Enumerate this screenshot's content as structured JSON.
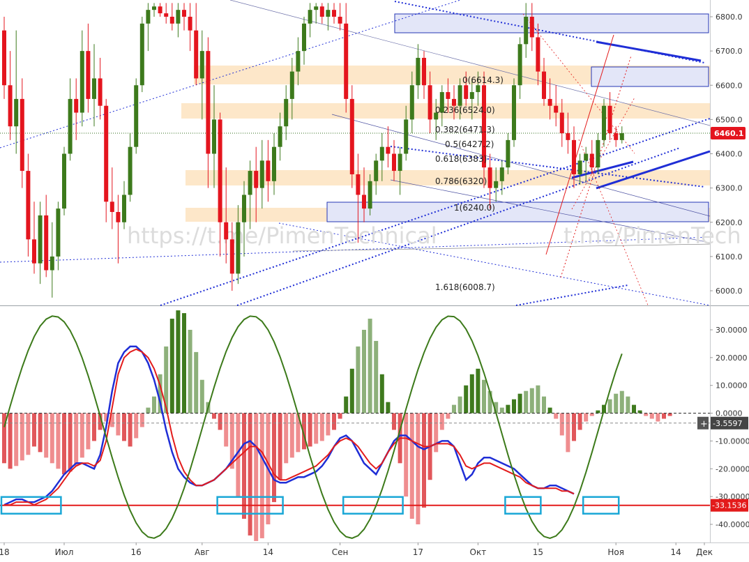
{
  "watermark": "https://t.me/PimenTechnical",
  "watermark2": "t.me/PimenTech",
  "colors": {
    "up": "#3d7a1c",
    "down": "#e4151e",
    "hist_pos": "#8db07a",
    "hist_neg": "#ef8d8f",
    "hist_pos_strong": "#3f7a1e",
    "hist_neg_strong": "#e1575b",
    "blue": "#1f2ed6",
    "red": "#e31b1b",
    "green": "#3c7a1a",
    "orange_zone": "#fde3c0",
    "blue_zone": "#e3e6f8",
    "highlight": "#1aa7d6"
  },
  "price_axis": {
    "ticks": [
      "6800.0",
      "6700.0",
      "6600.0",
      "6500.0",
      "6400.0",
      "6300.0",
      "6200.0",
      "6100.0",
      "6000.0"
    ],
    "last_price": "6460.1",
    "ylim": [
      5960,
      6840
    ]
  },
  "fib_levels": [
    {
      "label": "0.5(6427.2)",
      "value": 6427.2
    },
    {
      "label": "0.618(6383)",
      "value": 6383
    },
    {
      "label": "0.786(6320)",
      "value": 6320
    },
    {
      "label": "1(6240.0)",
      "value": 6240
    },
    {
      "label": "1.618(6008.7)",
      "value": 6008.7
    },
    {
      "label": "0.236(6524.0)",
      "value": 6524
    },
    {
      "label": "0.382(6471.3)",
      "value": 6471.3
    },
    {
      "label": "0(6614.3)",
      "value": 6614.3
    }
  ],
  "osc_axis": {
    "ticks": [
      "30.0000",
      "20.0000",
      "10.0000",
      "0.0000",
      "-10.0000",
      "-20.0000",
      "-30.0000",
      "-40.0000"
    ],
    "current_value": "-3.5597",
    "level_value": "-33.1536",
    "ylim": [
      -47,
      38
    ]
  },
  "time_axis": {
    "labels": [
      {
        "text": "18",
        "i": 0
      },
      {
        "text": "Июл",
        "i": 10
      },
      {
        "text": "16",
        "i": 22
      },
      {
        "text": "Авг",
        "i": 33
      },
      {
        "text": "14",
        "i": 44
      },
      {
        "text": "Сен",
        "i": 56
      },
      {
        "text": "17",
        "i": 69
      },
      {
        "text": "Окт",
        "i": 79
      },
      {
        "text": "15",
        "i": 89
      },
      {
        "text": "Ноя",
        "i": 102
      },
      {
        "text": "14",
        "i": 112
      },
      {
        "text": "Дек",
        "i": 124
      }
    ]
  },
  "chart_data": {
    "type": "candlestick",
    "candles": [
      [
        6760,
        6800,
        6560,
        6600
      ],
      [
        6600,
        6700,
        6440,
        6480
      ],
      [
        6480,
        6760,
        6400,
        6560
      ],
      [
        6560,
        6620,
        6300,
        6350
      ],
      [
        6350,
        6400,
        6100,
        6150
      ],
      [
        6150,
        6260,
        6050,
        6080
      ],
      [
        6080,
        6260,
        6020,
        6220
      ],
      [
        6220,
        6280,
        6040,
        6060
      ],
      [
        6060,
        6200,
        5980,
        6100
      ],
      [
        6100,
        6260,
        6060,
        6240
      ],
      [
        6240,
        6420,
        6220,
        6400
      ],
      [
        6400,
        6620,
        6380,
        6560
      ],
      [
        6560,
        6620,
        6440,
        6520
      ],
      [
        6520,
        6760,
        6480,
        6700
      ],
      [
        6700,
        6780,
        6520,
        6560
      ],
      [
        6560,
        6720,
        6480,
        6620
      ],
      [
        6620,
        6680,
        6500,
        6540
      ],
      [
        6540,
        6560,
        6200,
        6260
      ],
      [
        6260,
        6360,
        6180,
        6230
      ],
      [
        6230,
        6280,
        6080,
        6200
      ],
      [
        6200,
        6320,
        6180,
        6280
      ],
      [
        6280,
        6460,
        6260,
        6420
      ],
      [
        6420,
        6620,
        6400,
        6600
      ],
      [
        6600,
        6800,
        6580,
        6780
      ],
      [
        6780,
        6840,
        6700,
        6820
      ],
      [
        6820,
        6840,
        6800,
        6830
      ],
      [
        6830,
        6840,
        6800,
        6810
      ],
      [
        6810,
        6840,
        6780,
        6800
      ],
      [
        6800,
        6840,
        6760,
        6780
      ],
      [
        6780,
        6840,
        6740,
        6820
      ],
      [
        6820,
        6840,
        6760,
        6800
      ],
      [
        6800,
        6840,
        6700,
        6760
      ],
      [
        6760,
        6840,
        6600,
        6620
      ],
      [
        6620,
        6760,
        6500,
        6700
      ],
      [
        6700,
        6740,
        6300,
        6400
      ],
      [
        6400,
        6600,
        6300,
        6500
      ],
      [
        6500,
        6520,
        6100,
        6200
      ],
      [
        6200,
        6360,
        6080,
        6150
      ],
      [
        6150,
        6200,
        6000,
        6050
      ],
      [
        6050,
        6250,
        6020,
        6200
      ],
      [
        6200,
        6320,
        6100,
        6280
      ],
      [
        6280,
        6380,
        6180,
        6350
      ],
      [
        6350,
        6420,
        6200,
        6300
      ],
      [
        6300,
        6440,
        6240,
        6380
      ],
      [
        6380,
        6440,
        6260,
        6320
      ],
      [
        6320,
        6460,
        6280,
        6420
      ],
      [
        6420,
        6520,
        6380,
        6480
      ],
      [
        6480,
        6600,
        6440,
        6560
      ],
      [
        6560,
        6680,
        6500,
        6640
      ],
      [
        6640,
        6740,
        6600,
        6700
      ],
      [
        6700,
        6800,
        6660,
        6780
      ],
      [
        6780,
        6840,
        6740,
        6820
      ],
      [
        6820,
        6840,
        6780,
        6830
      ],
      [
        6830,
        6840,
        6780,
        6800
      ],
      [
        6800,
        6840,
        6760,
        6820
      ],
      [
        6820,
        6840,
        6780,
        6800
      ],
      [
        6800,
        6840,
        6760,
        6780
      ],
      [
        6780,
        6840,
        6520,
        6560
      ],
      [
        6560,
        6600,
        6300,
        6340
      ],
      [
        6340,
        6400,
        6140,
        6280
      ],
      [
        6280,
        6360,
        6200,
        6240
      ],
      [
        6240,
        6340,
        6220,
        6320
      ],
      [
        6320,
        6400,
        6280,
        6380
      ],
      [
        6380,
        6460,
        6320,
        6420
      ],
      [
        6420,
        6480,
        6360,
        6400
      ],
      [
        6400,
        6440,
        6320,
        6350
      ],
      [
        6350,
        6420,
        6280,
        6400
      ],
      [
        6400,
        6540,
        6380,
        6500
      ],
      [
        6500,
        6640,
        6460,
        6600
      ],
      [
        6600,
        6720,
        6560,
        6680
      ],
      [
        6680,
        6700,
        6560,
        6600
      ],
      [
        6600,
        6640,
        6460,
        6500
      ],
      [
        6500,
        6560,
        6440,
        6520
      ],
      [
        6520,
        6600,
        6480,
        6580
      ],
      [
        6580,
        6620,
        6520,
        6560
      ],
      [
        6560,
        6600,
        6500,
        6540
      ],
      [
        6540,
        6620,
        6500,
        6600
      ],
      [
        6600,
        6640,
        6540,
        6560
      ],
      [
        6560,
        6620,
        6500,
        6580
      ],
      [
        6580,
        6640,
        6540,
        6600
      ],
      [
        6600,
        6640,
        6300,
        6360
      ],
      [
        6360,
        6400,
        6240,
        6300
      ],
      [
        6300,
        6360,
        6260,
        6320
      ],
      [
        6320,
        6380,
        6280,
        6360
      ],
      [
        6360,
        6460,
        6340,
        6440
      ],
      [
        6440,
        6620,
        6420,
        6600
      ],
      [
        6600,
        6740,
        6560,
        6720
      ],
      [
        6720,
        6840,
        6680,
        6800
      ],
      [
        6800,
        6840,
        6700,
        6740
      ],
      [
        6740,
        6780,
        6600,
        6640
      ],
      [
        6640,
        6680,
        6540,
        6560
      ],
      [
        6560,
        6620,
        6500,
        6540
      ],
      [
        6540,
        6600,
        6480,
        6520
      ],
      [
        6520,
        6560,
        6420,
        6460
      ],
      [
        6460,
        6520,
        6400,
        6440
      ],
      [
        6440,
        6480,
        6300,
        6340
      ],
      [
        6340,
        6400,
        6310,
        6380
      ],
      [
        6380,
        6420,
        6320,
        6400
      ],
      [
        6400,
        6440,
        6340,
        6360
      ],
      [
        6360,
        6460,
        6340,
        6440
      ],
      [
        6440,
        6560,
        6420,
        6540
      ],
      [
        6540,
        6580,
        6440,
        6460
      ],
      [
        6460,
        6480,
        6420,
        6440
      ],
      [
        6440,
        6480,
        6430,
        6460
      ]
    ],
    "type_note": "",
    "oscillator": {
      "histogram": [
        -18,
        -20,
        -19,
        -17,
        -15,
        -12,
        -14,
        -16,
        -18,
        -20,
        -22,
        -21,
        -19,
        -16,
        -13,
        -10,
        -6,
        -3,
        -5,
        -8,
        -10,
        -12,
        -9,
        -5,
        2,
        6,
        14,
        24,
        34,
        37,
        36,
        30,
        22,
        12,
        4,
        -2,
        -6,
        -12,
        -20,
        -30,
        -38,
        -44,
        -46,
        -45,
        -40,
        -32,
        -24,
        -18,
        -16,
        -14,
        -13,
        -12,
        -11,
        -10,
        -8,
        -6,
        -2,
        6,
        16,
        24,
        30,
        34,
        26,
        14,
        4,
        -6,
        -18,
        -30,
        -38,
        -40,
        -34,
        -24,
        -14,
        -6,
        -2,
        3,
        6,
        10,
        14,
        16,
        12,
        8,
        4,
        2,
        3,
        5,
        7,
        8,
        9,
        10,
        6,
        2,
        -2,
        -8,
        -14,
        -10,
        -6,
        -3,
        -1,
        1,
        3,
        5,
        7,
        8,
        6,
        3,
        1,
        -1,
        -2,
        -3,
        -2,
        -1
      ],
      "blue_thick": [
        -33,
        -32,
        -31,
        -31,
        -32,
        -32,
        -31,
        -30,
        -28,
        -25,
        -22,
        -20,
        -18,
        -18,
        -19,
        -20,
        -15,
        -5,
        8,
        18,
        22,
        24,
        24,
        22,
        18,
        12,
        4,
        -6,
        -14,
        -20,
        -23,
        -25,
        -26,
        -26,
        -25,
        -24,
        -22,
        -20,
        -17,
        -14,
        -11,
        -10,
        -12,
        -16,
        -20,
        -24,
        -25,
        -25,
        -24,
        -23,
        -23,
        -22,
        -21,
        -19,
        -16,
        -12,
        -9,
        -8,
        -10,
        -14,
        -18,
        -20,
        -22,
        -18,
        -14,
        -10,
        -8,
        -8,
        -10,
        -12,
        -13,
        -12,
        -11,
        -10,
        -10,
        -12,
        -18,
        -24,
        -22,
        -18,
        -16,
        -16,
        -17,
        -18,
        -19,
        -20,
        -22,
        -24,
        -26,
        -27,
        -27,
        -26,
        -26,
        -27,
        -28,
        -29
      ],
      "red_thick": [
        -33,
        -33,
        -32,
        -32,
        -32,
        -33,
        -32,
        -31,
        -29,
        -27,
        -24,
        -21,
        -19,
        -18,
        -18,
        -19,
        -17,
        -10,
        2,
        14,
        20,
        22,
        23,
        22,
        20,
        16,
        10,
        2,
        -8,
        -16,
        -21,
        -24,
        -26,
        -26,
        -25,
        -24,
        -22,
        -20,
        -18,
        -16,
        -14,
        -12,
        -12,
        -14,
        -18,
        -22,
        -24,
        -24,
        -23,
        -22,
        -21,
        -20,
        -19,
        -17,
        -15,
        -12,
        -10,
        -9,
        -10,
        -12,
        -15,
        -18,
        -20,
        -18,
        -14,
        -11,
        -9,
        -9,
        -10,
        -11,
        -12,
        -12,
        -11,
        -11,
        -11,
        -12,
        -15,
        -19,
        -20,
        -19,
        -18,
        -18,
        -19,
        -20,
        -21,
        -22,
        -23,
        -25,
        -26,
        -27,
        -27,
        -27,
        -27,
        -28,
        -28,
        -29
      ]
    },
    "highlight_boxes": [
      {
        "from": 0,
        "to": 9
      },
      {
        "from": 36,
        "to": 46
      },
      {
        "from": 57,
        "to": 66
      },
      {
        "from": 84,
        "to": 89
      },
      {
        "from": 97,
        "to": 102
      }
    ]
  }
}
